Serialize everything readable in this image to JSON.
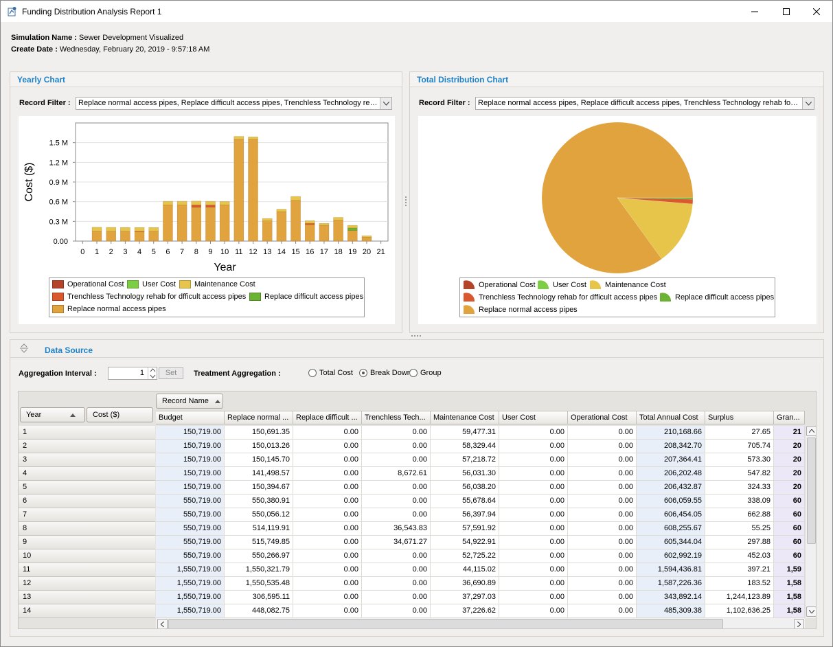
{
  "window": {
    "title": "Funding Distribution Analysis Report 1"
  },
  "meta": {
    "simulation_label": "Simulation Name :",
    "simulation_value": "Sewer Development Visualized",
    "date_label": "Create Date :",
    "date_value": "Wednesday, February 20, 2019 - 9:57:18 AM"
  },
  "yearly": {
    "title": "Yearly Chart",
    "filter_label": "Record Filter :",
    "filter_value": "Replace normal access pipes, Replace difficult access pipes, Trenchless Technology rehab for difficult access pipes"
  },
  "total": {
    "title": "Total Distribution Chart",
    "filter_label": "Record Filter :",
    "filter_value": "Replace normal access pipes, Replace difficult access pipes, Trenchless Technology rehab for difficult access pipes"
  },
  "legend": {
    "operational": "Operational Cost",
    "user": "User Cost",
    "maintenance": "Maintenance Cost",
    "trenchless": "Trenchless Technology rehab for dfficult access pipes",
    "difficult": "Replace difficult access pipes",
    "normal": "Replace normal access pipes"
  },
  "colors": {
    "operational": "#b4432a",
    "user": "#7ccf45",
    "maintenance": "#e6c54a",
    "trenchless": "#d9582e",
    "difficult": "#6cb233",
    "normal": "#e0a33d"
  },
  "chart_data": [
    {
      "type": "bar",
      "stacked": true,
      "xlabel": "Year",
      "ylabel": "Cost ($)",
      "ylim": [
        0,
        1800000
      ],
      "yticks": [
        "0.00",
        "0.3 M",
        "0.6 M",
        "0.9 M",
        "1.2 M",
        "1.5 M"
      ],
      "ytick_values": [
        0,
        300000,
        600000,
        900000,
        1200000,
        1500000
      ],
      "categories": [
        0,
        1,
        2,
        3,
        4,
        5,
        6,
        7,
        8,
        9,
        10,
        11,
        12,
        13,
        14,
        15,
        16,
        17,
        18,
        19,
        20,
        21
      ],
      "series": [
        {
          "name": "Replace normal access pipes",
          "color_key": "normal",
          "values": [
            0,
            150691,
            150013,
            150146,
            141499,
            150395,
            550381,
            550056,
            514120,
            515750,
            550267,
            1550322,
            1550535,
            306595,
            448083,
            620000,
            250000,
            240000,
            320000,
            160000,
            60000,
            0
          ]
        },
        {
          "name": "Replace difficult access pipes",
          "color_key": "difficult",
          "values": [
            0,
            0,
            0,
            0,
            0,
            0,
            0,
            0,
            0,
            0,
            0,
            0,
            0,
            0,
            0,
            0,
            0,
            0,
            0,
            40000,
            0,
            0
          ]
        },
        {
          "name": "Trenchless Technology rehab for dfficult access pipes",
          "color_key": "trenchless",
          "values": [
            0,
            0,
            0,
            0,
            8673,
            0,
            0,
            0,
            36544,
            34671,
            0,
            0,
            0,
            0,
            0,
            0,
            20000,
            0,
            0,
            0,
            0,
            0
          ]
        },
        {
          "name": "Maintenance Cost",
          "color_key": "maintenance",
          "values": [
            0,
            59477,
            58329,
            57219,
            56031,
            56038,
            55679,
            56398,
            57592,
            54923,
            52725,
            44115,
            36691,
            37297,
            37227,
            60000,
            40000,
            30000,
            40000,
            40000,
            20000,
            0
          ]
        },
        {
          "name": "User Cost",
          "color_key": "user",
          "values": [
            0,
            0,
            0,
            0,
            0,
            0,
            0,
            0,
            0,
            0,
            0,
            0,
            0,
            0,
            0,
            0,
            0,
            0,
            0,
            0,
            0,
            0
          ]
        },
        {
          "name": "Operational Cost",
          "color_key": "operational",
          "values": [
            0,
            0,
            0,
            0,
            0,
            0,
            0,
            0,
            0,
            0,
            0,
            0,
            0,
            0,
            0,
            0,
            0,
            0,
            0,
            0,
            0,
            0
          ]
        }
      ]
    },
    {
      "type": "pie",
      "slices": [
        {
          "name": "Replace normal access pipes",
          "color_key": "normal",
          "value": 85.0
        },
        {
          "name": "Maintenance Cost",
          "color_key": "maintenance",
          "value": 13.7
        },
        {
          "name": "Trenchless Technology rehab for dfficult access pipes",
          "color_key": "trenchless",
          "value": 1.0
        },
        {
          "name": "Replace difficult access pipes",
          "color_key": "difficult",
          "value": 0.3
        }
      ]
    }
  ],
  "datasource": {
    "title": "Data Source",
    "agg_label": "Aggregation Interval :",
    "agg_value": "1",
    "set_label": "Set",
    "treat_label": "Treatment Aggregation :",
    "radio_total": "Total Cost",
    "radio_break": "Break Down",
    "radio_group": "Group"
  },
  "grid": {
    "record_name_label": "Record Name",
    "year_label": "Year",
    "cost_label": "Cost ($)",
    "columns": [
      "Budget",
      "Replace normal ...",
      "Replace difficult ...",
      "Trenchless Tech...",
      "Maintenance Cost",
      "User Cost",
      "Operational Cost",
      "Total Annual Cost",
      "Surplus",
      "Gran..."
    ],
    "rows": [
      [
        "1",
        "150,719.00",
        "150,691.35",
        "0.00",
        "0.00",
        "59,477.31",
        "0.00",
        "0.00",
        "210,168.66",
        "27.65",
        "21"
      ],
      [
        "2",
        "150,719.00",
        "150,013.26",
        "0.00",
        "0.00",
        "58,329.44",
        "0.00",
        "0.00",
        "208,342.70",
        "705.74",
        "20"
      ],
      [
        "3",
        "150,719.00",
        "150,145.70",
        "0.00",
        "0.00",
        "57,218.72",
        "0.00",
        "0.00",
        "207,364.41",
        "573.30",
        "20"
      ],
      [
        "4",
        "150,719.00",
        "141,498.57",
        "0.00",
        "8,672.61",
        "56,031.30",
        "0.00",
        "0.00",
        "206,202.48",
        "547.82",
        "20"
      ],
      [
        "5",
        "150,719.00",
        "150,394.67",
        "0.00",
        "0.00",
        "56,038.20",
        "0.00",
        "0.00",
        "206,432.87",
        "324.33",
        "20"
      ],
      [
        "6",
        "550,719.00",
        "550,380.91",
        "0.00",
        "0.00",
        "55,678.64",
        "0.00",
        "0.00",
        "606,059.55",
        "338.09",
        "60"
      ],
      [
        "7",
        "550,719.00",
        "550,056.12",
        "0.00",
        "0.00",
        "56,397.94",
        "0.00",
        "0.00",
        "606,454.05",
        "662.88",
        "60"
      ],
      [
        "8",
        "550,719.00",
        "514,119.91",
        "0.00",
        "36,543.83",
        "57,591.92",
        "0.00",
        "0.00",
        "608,255.67",
        "55.25",
        "60"
      ],
      [
        "9",
        "550,719.00",
        "515,749.85",
        "0.00",
        "34,671.27",
        "54,922.91",
        "0.00",
        "0.00",
        "605,344.04",
        "297.88",
        "60"
      ],
      [
        "10",
        "550,719.00",
        "550,266.97",
        "0.00",
        "0.00",
        "52,725.22",
        "0.00",
        "0.00",
        "602,992.19",
        "452.03",
        "60"
      ],
      [
        "11",
        "1,550,719.00",
        "1,550,321.79",
        "0.00",
        "0.00",
        "44,115.02",
        "0.00",
        "0.00",
        "1,594,436.81",
        "397.21",
        "1,59"
      ],
      [
        "12",
        "1,550,719.00",
        "1,550,535.48",
        "0.00",
        "0.00",
        "36,690.89",
        "0.00",
        "0.00",
        "1,587,226.36",
        "183.52",
        "1,58"
      ],
      [
        "13",
        "1,550,719.00",
        "306,595.11",
        "0.00",
        "0.00",
        "37,297.03",
        "0.00",
        "0.00",
        "343,892.14",
        "1,244,123.89",
        "1,58"
      ],
      [
        "14",
        "1,550,719.00",
        "448,082.75",
        "0.00",
        "0.00",
        "37,226.62",
        "0.00",
        "0.00",
        "485,309.38",
        "1,102,636.25",
        "1,58"
      ]
    ]
  }
}
